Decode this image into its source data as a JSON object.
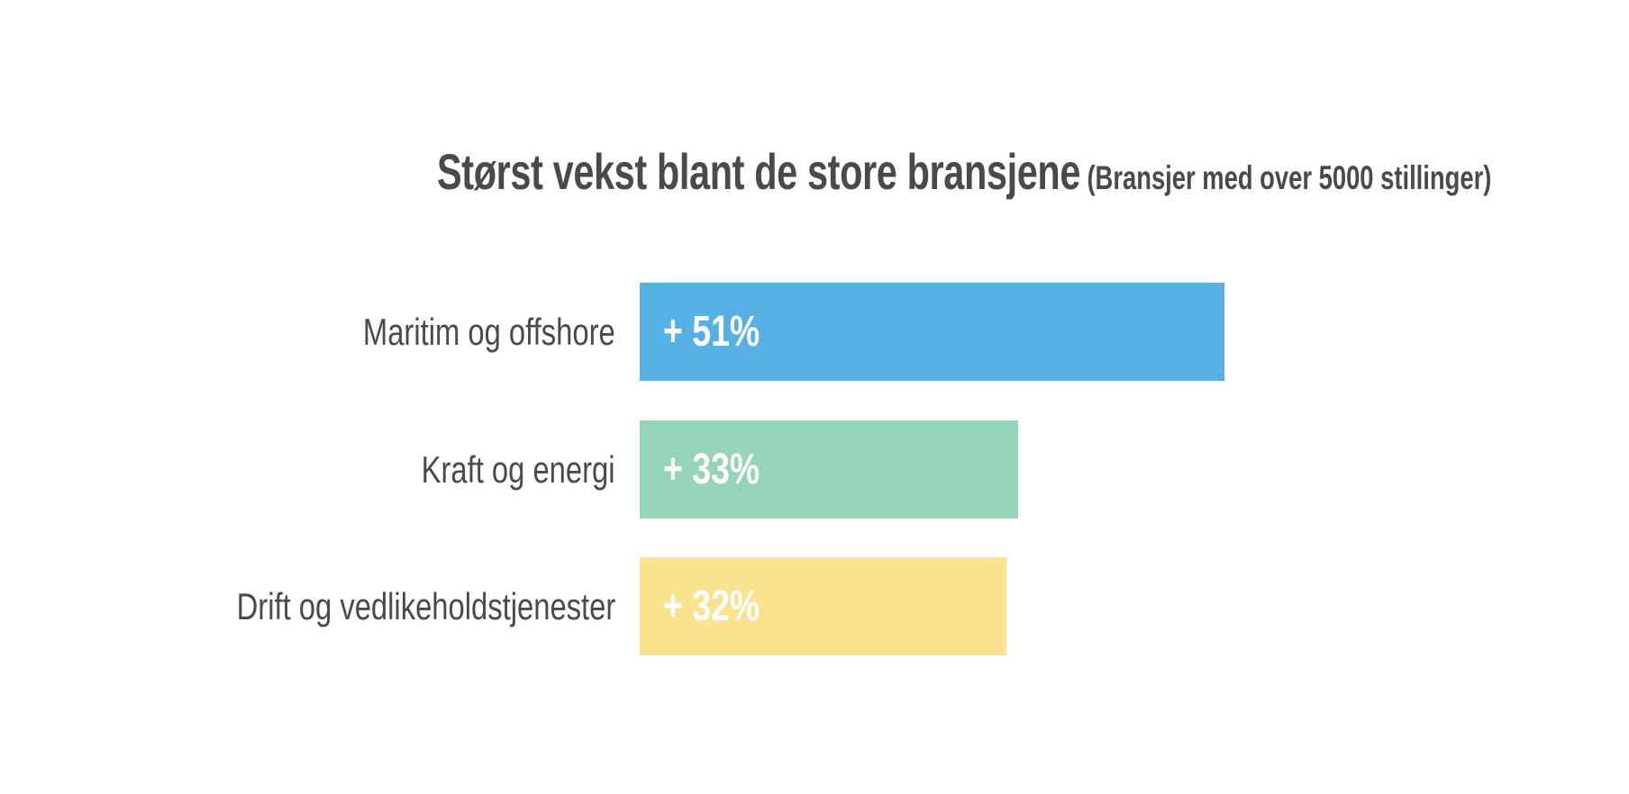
{
  "title": {
    "main": "Størst vekst blant de store bransjene",
    "subtitle": "(Bransjer med over 5000 stillinger)"
  },
  "bars": [
    {
      "label": "Maritim og offshore",
      "value_label": "+ 51%",
      "value": 51,
      "color": "#57b0e3"
    },
    {
      "label": "Kraft og energi",
      "value_label": "+ 33%",
      "value": 33,
      "color": "#95d4b9"
    },
    {
      "label": "Drift og vedlikeholdstjenester",
      "value_label": "+ 32%",
      "value": 32,
      "color": "#fae28f"
    }
  ],
  "chart_data": {
    "type": "bar",
    "orientation": "horizontal",
    "title": "Størst vekst blant de store bransjene",
    "subtitle": "(Bransjer med over 5000 stillinger)",
    "categories": [
      "Maritim og offshore",
      "Kraft og energi",
      "Drift og vedlikeholdstjenester"
    ],
    "values": [
      51,
      33,
      32
    ],
    "value_labels": [
      "+ 51%",
      "+ 33%",
      "+ 32%"
    ],
    "colors": [
      "#57b0e3",
      "#95d4b9",
      "#fae28f"
    ],
    "unit": "%",
    "xlabel": "",
    "ylabel": "",
    "grid": false,
    "legend": false
  }
}
